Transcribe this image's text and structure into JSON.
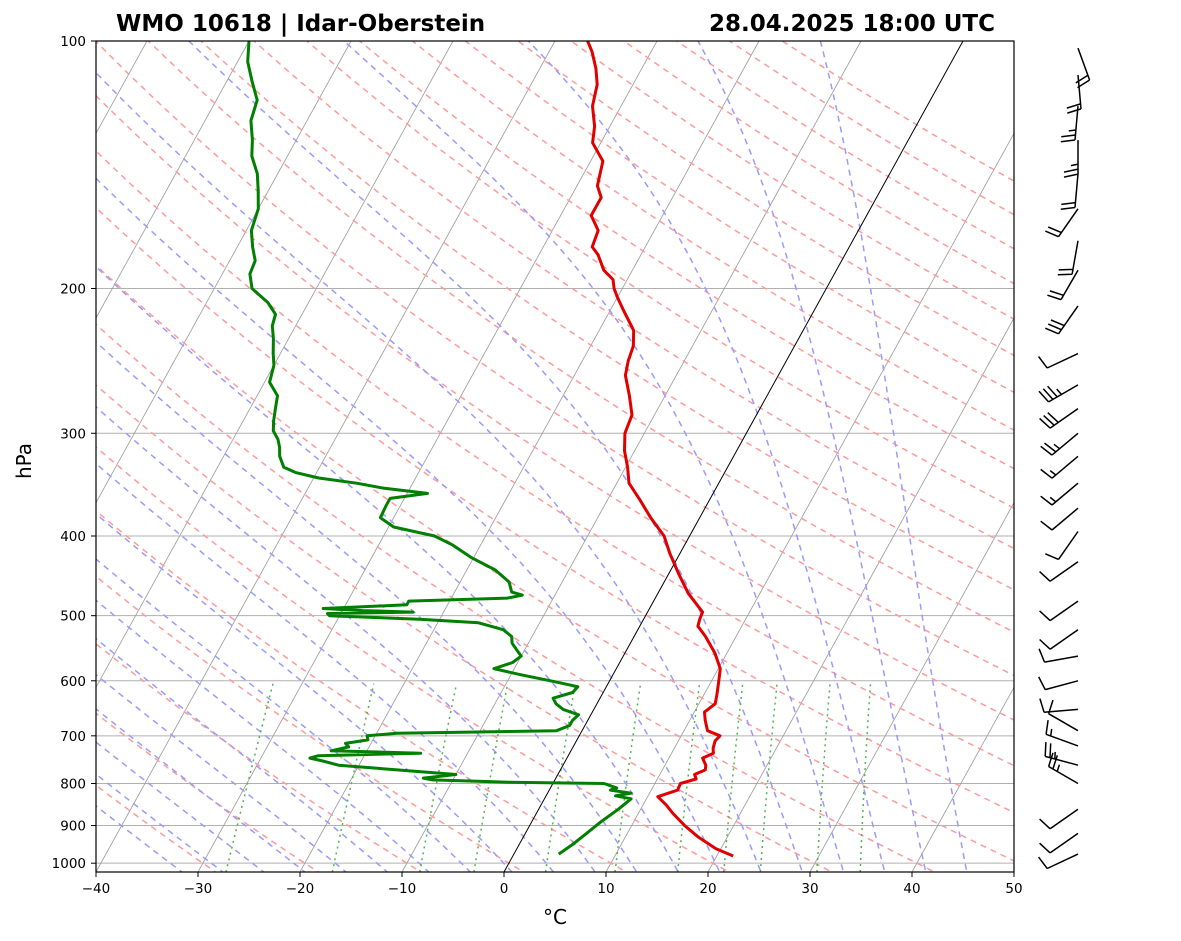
{
  "chart_data": {
    "type": "skew-t",
    "title_left": "WMO 10618 | Idar-Oberstein",
    "title_right": "28.04.2025 18:00 UTC",
    "xlabel": "°C",
    "ylabel": "hPa",
    "xlim": [
      -40,
      50
    ],
    "ylim": [
      1025,
      100
    ],
    "x_ticks": [
      {
        "value": -40,
        "label": "−40"
      },
      {
        "value": -30,
        "label": "−30"
      },
      {
        "value": -20,
        "label": "−20"
      },
      {
        "value": -10,
        "label": "−10"
      },
      {
        "value": 0,
        "label": "0"
      },
      {
        "value": 10,
        "label": "10"
      },
      {
        "value": 20,
        "label": "20"
      },
      {
        "value": 30,
        "label": "30"
      },
      {
        "value": 40,
        "label": "40"
      },
      {
        "value": 50,
        "label": "50"
      }
    ],
    "y_ticks": [
      {
        "value": 100,
        "label": "100"
      },
      {
        "value": 200,
        "label": "200"
      },
      {
        "value": 300,
        "label": "300"
      },
      {
        "value": 400,
        "label": "400"
      },
      {
        "value": 500,
        "label": "500"
      },
      {
        "value": 600,
        "label": "600"
      },
      {
        "value": 700,
        "label": "700"
      },
      {
        "value": 800,
        "label": "800"
      },
      {
        "value": 900,
        "label": "900"
      },
      {
        "value": 1000,
        "label": "1000"
      }
    ],
    "grid": true,
    "colors": {
      "temperature": "#e00000",
      "dewpoint": "#007f00",
      "dry_adiabats": "#ff9a9a",
      "moist_adiabats": "#9a9aff",
      "mixing_ratio": "#50b450",
      "isotherms": "#999999",
      "zero_isotherm": "#000000"
    },
    "series": [
      {
        "name": "temperature",
        "points": [
          [
            980,
            21.6
          ],
          [
            960,
            19.5
          ],
          [
            930,
            17.2
          ],
          [
            900,
            15.2
          ],
          [
            870,
            13.4
          ],
          [
            850,
            12.3
          ],
          [
            830,
            11.0
          ],
          [
            815,
            12.6
          ],
          [
            800,
            12.5
          ],
          [
            790,
            13.8
          ],
          [
            780,
            13.4
          ],
          [
            770,
            14.2
          ],
          [
            760,
            14.0
          ],
          [
            745,
            13.3
          ],
          [
            735,
            14.1
          ],
          [
            725,
            13.8
          ],
          [
            710,
            13.6
          ],
          [
            700,
            13.8
          ],
          [
            690,
            12.3
          ],
          [
            670,
            11.5
          ],
          [
            655,
            11.0
          ],
          [
            640,
            11.6
          ],
          [
            625,
            11.3
          ],
          [
            600,
            10.7
          ],
          [
            580,
            10.2
          ],
          [
            555,
            8.8
          ],
          [
            530,
            7.0
          ],
          [
            515,
            5.7
          ],
          [
            505,
            5.5
          ],
          [
            495,
            5.4
          ],
          [
            470,
            3.0
          ],
          [
            445,
            1.0
          ],
          [
            420,
            -1.0
          ],
          [
            400,
            -2.5
          ],
          [
            380,
            -4.8
          ],
          [
            360,
            -7.0
          ],
          [
            345,
            -8.8
          ],
          [
            330,
            -9.8
          ],
          [
            315,
            -11.0
          ],
          [
            300,
            -11.9
          ],
          [
            285,
            -12.2
          ],
          [
            270,
            -13.5
          ],
          [
            255,
            -15.0
          ],
          [
            245,
            -15.5
          ],
          [
            235,
            -15.8
          ],
          [
            225,
            -16.6
          ],
          [
            212,
            -18.8
          ],
          [
            205,
            -20.0
          ],
          [
            200,
            -20.8
          ],
          [
            195,
            -21.4
          ],
          [
            190,
            -22.8
          ],
          [
            182,
            -24.2
          ],
          [
            178,
            -25.2
          ],
          [
            170,
            -25.5
          ],
          [
            163,
            -27.0
          ],
          [
            155,
            -27.0
          ],
          [
            150,
            -28.0
          ],
          [
            140,
            -28.8
          ],
          [
            133,
            -30.8
          ],
          [
            127,
            -31.5
          ],
          [
            120,
            -32.8
          ],
          [
            113,
            -33.5
          ],
          [
            108,
            -34.5
          ],
          [
            103,
            -35.8
          ],
          [
            100,
            -36.8
          ]
        ]
      },
      {
        "name": "dewpoint",
        "points": [
          [
            975,
            4.4
          ],
          [
            950,
            5.2
          ],
          [
            920,
            6.0
          ],
          [
            890,
            6.8
          ],
          [
            860,
            7.8
          ],
          [
            835,
            8.5
          ],
          [
            828,
            6.8
          ],
          [
            822,
            8.2
          ],
          [
            815,
            6.0
          ],
          [
            810,
            6.5
          ],
          [
            800,
            5.0
          ],
          [
            797,
            -4.4
          ],
          [
            795,
            -7.5
          ],
          [
            792,
            -12.0
          ],
          [
            788,
            -13.0
          ],
          [
            780,
            -10.0
          ],
          [
            770,
            -16.0
          ],
          [
            760,
            -22.0
          ],
          [
            750,
            -24.0
          ],
          [
            745,
            -25.2
          ],
          [
            740,
            -24.5
          ],
          [
            735,
            -14.6
          ],
          [
            730,
            -23.5
          ],
          [
            722,
            -22.0
          ],
          [
            715,
            -22.5
          ],
          [
            708,
            -20.5
          ],
          [
            700,
            -20.8
          ],
          [
            695,
            -18.0
          ],
          [
            690,
            -2.5
          ],
          [
            680,
            -1.5
          ],
          [
            670,
            -1.5
          ],
          [
            660,
            -1.2
          ],
          [
            650,
            -3.0
          ],
          [
            640,
            -4.0
          ],
          [
            630,
            -4.6
          ],
          [
            620,
            -3.0
          ],
          [
            610,
            -2.8
          ],
          [
            600,
            -5.8
          ],
          [
            590,
            -9.0
          ],
          [
            580,
            -12.0
          ],
          [
            570,
            -10.5
          ],
          [
            560,
            -10.0
          ],
          [
            550,
            -10.8
          ],
          [
            540,
            -11.6
          ],
          [
            530,
            -12.0
          ],
          [
            520,
            -13.2
          ],
          [
            510,
            -16.0
          ],
          [
            505,
            -22.0
          ],
          [
            500,
            -31.0
          ],
          [
            497,
            -31.3
          ],
          [
            495,
            -23.0
          ],
          [
            493,
            -28.0
          ],
          [
            490,
            -32.0
          ],
          [
            485,
            -24.0
          ],
          [
            480,
            -24.0
          ],
          [
            476,
            -14.5
          ],
          [
            472,
            -13.2
          ],
          [
            468,
            -14.4
          ],
          [
            455,
            -15.2
          ],
          [
            440,
            -17.2
          ],
          [
            425,
            -20.2
          ],
          [
            410,
            -22.8
          ],
          [
            400,
            -25.0
          ],
          [
            390,
            -29.5
          ],
          [
            380,
            -31.3
          ],
          [
            368,
            -31.4
          ],
          [
            360,
            -31.4
          ],
          [
            355,
            -28.0
          ],
          [
            350,
            -32.5
          ],
          [
            345,
            -35.5
          ],
          [
            340,
            -39.5
          ],
          [
            335,
            -42.0
          ],
          [
            330,
            -43.5
          ],
          [
            320,
            -44.5
          ],
          [
            312,
            -45.0
          ],
          [
            305,
            -45.6
          ],
          [
            298,
            -46.5
          ],
          [
            290,
            -47.0
          ],
          [
            280,
            -47.5
          ],
          [
            270,
            -48.0
          ],
          [
            260,
            -49.5
          ],
          [
            248,
            -50.0
          ],
          [
            240,
            -50.7
          ],
          [
            230,
            -51.5
          ],
          [
            222,
            -52.3
          ],
          [
            215,
            -52.6
          ],
          [
            208,
            -54.0
          ],
          [
            200,
            -56.3
          ],
          [
            192,
            -57.3
          ],
          [
            185,
            -57.5
          ],
          [
            178,
            -58.5
          ],
          [
            170,
            -59.5
          ],
          [
            160,
            -60.0
          ],
          [
            152,
            -61.0
          ],
          [
            145,
            -62.0
          ],
          [
            138,
            -63.5
          ],
          [
            132,
            -64.3
          ],
          [
            125,
            -65.5
          ],
          [
            118,
            -66.0
          ],
          [
            112,
            -67.5
          ],
          [
            106,
            -69.0
          ],
          [
            100,
            -70.0
          ]
        ]
      }
    ],
    "wind_barbs": [
      {
        "pressure": 975,
        "direction_deg": 245,
        "speed_kt": 10
      },
      {
        "pressure": 920,
        "direction_deg": 235,
        "speed_kt": 10
      },
      {
        "pressure": 860,
        "direction_deg": 235,
        "speed_kt": 10
      },
      {
        "pressure": 800,
        "direction_deg": 300,
        "speed_kt": 25
      },
      {
        "pressure": 760,
        "direction_deg": 285,
        "speed_kt": 25
      },
      {
        "pressure": 720,
        "direction_deg": 290,
        "speed_kt": 15
      },
      {
        "pressure": 690,
        "direction_deg": 300,
        "speed_kt": 10
      },
      {
        "pressure": 650,
        "direction_deg": 265,
        "speed_kt": 10
      },
      {
        "pressure": 600,
        "direction_deg": 255,
        "speed_kt": 10
      },
      {
        "pressure": 560,
        "direction_deg": 260,
        "speed_kt": 10
      },
      {
        "pressure": 520,
        "direction_deg": 235,
        "speed_kt": 10
      },
      {
        "pressure": 480,
        "direction_deg": 235,
        "speed_kt": 10
      },
      {
        "pressure": 430,
        "direction_deg": 235,
        "speed_kt": 10
      },
      {
        "pressure": 395,
        "direction_deg": 215,
        "speed_kt": 10
      },
      {
        "pressure": 370,
        "direction_deg": 230,
        "speed_kt": 10
      },
      {
        "pressure": 345,
        "direction_deg": 230,
        "speed_kt": 15
      },
      {
        "pressure": 320,
        "direction_deg": 230,
        "speed_kt": 15
      },
      {
        "pressure": 300,
        "direction_deg": 230,
        "speed_kt": 25
      },
      {
        "pressure": 280,
        "direction_deg": 235,
        "speed_kt": 30
      },
      {
        "pressure": 262,
        "direction_deg": 240,
        "speed_kt": 35
      },
      {
        "pressure": 240,
        "direction_deg": 245,
        "speed_kt": 10
      },
      {
        "pressure": 210,
        "direction_deg": 215,
        "speed_kt": 30
      },
      {
        "pressure": 190,
        "direction_deg": 210,
        "speed_kt": 20
      },
      {
        "pressure": 175,
        "direction_deg": 190,
        "speed_kt": 20
      },
      {
        "pressure": 160,
        "direction_deg": 215,
        "speed_kt": 20
      },
      {
        "pressure": 145,
        "direction_deg": 185,
        "speed_kt": 20
      },
      {
        "pressure": 132,
        "direction_deg": 180,
        "speed_kt": 25
      },
      {
        "pressure": 120,
        "direction_deg": 185,
        "speed_kt": 25
      },
      {
        "pressure": 110,
        "direction_deg": 175,
        "speed_kt": 20
      },
      {
        "pressure": 102,
        "direction_deg": 160,
        "speed_kt": 20
      }
    ]
  }
}
